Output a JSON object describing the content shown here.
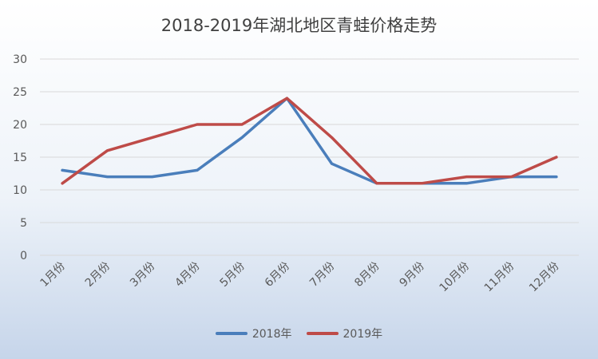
{
  "chart_data": {
    "type": "line",
    "title": "2018-2019年湖北地区青蛙价格走势",
    "categories": [
      "1月份",
      "2月份",
      "3月份",
      "4月份",
      "5月份",
      "6月份",
      "7月份",
      "8月份",
      "9月份",
      "10月份",
      "11月份",
      "12月份"
    ],
    "series": [
      {
        "name": "2018年",
        "color": "#4a7ebb",
        "values": [
          13,
          12,
          12,
          13,
          18,
          24,
          14,
          11,
          11,
          11,
          12,
          12
        ]
      },
      {
        "name": "2019年",
        "color": "#be4b48",
        "values": [
          11,
          16,
          18,
          20,
          20,
          24,
          18,
          11,
          11,
          12,
          12,
          15
        ]
      }
    ],
    "ylim": [
      0,
      30
    ],
    "yticks": [
      0,
      5,
      10,
      15,
      20,
      25,
      30
    ],
    "grid": true,
    "legend": "bottom"
  }
}
